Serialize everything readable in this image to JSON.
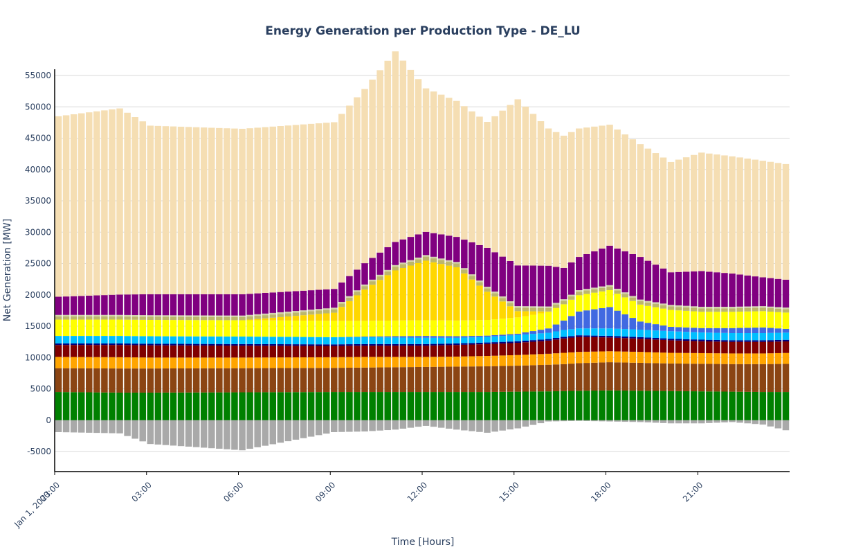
{
  "chart_data": {
    "type": "bar",
    "stacked": true,
    "title": "Energy Generation per Production Type - DE_LU",
    "xlabel": "Time [Hours]",
    "ylabel": "Net Generation [MW]",
    "ylim": [
      -8200,
      56000
    ],
    "y_ticks": [
      -5000,
      0,
      5000,
      10000,
      15000,
      20000,
      25000,
      30000,
      35000,
      40000,
      45000,
      50000,
      55000
    ],
    "x_ticks": [
      "00:00",
      "03:00",
      "06:00",
      "09:00",
      "12:00",
      "15:00",
      "18:00",
      "21:00"
    ],
    "x_tick_sublabel": "Jan 1, 2023",
    "interval_minutes": 15,
    "grid": true,
    "legend": "none",
    "colors": {
      "negative": "#a9a9a9",
      "layers": [
        "#008000",
        "#8b4513",
        "#ffa500",
        "#800000",
        "#000080",
        "#00bfff",
        "#4169e1",
        "#ffff00",
        "#ffd700",
        "#bdb76b",
        "#d2d2aa",
        "#800080",
        "#f5deb3"
      ]
    },
    "key_times": [
      0,
      2,
      3,
      6,
      9,
      10,
      11,
      12,
      13,
      14,
      15,
      16,
      16.5,
      17,
      18,
      19,
      20,
      21,
      22,
      23,
      24
    ],
    "negative_at_key_times": [
      -1900,
      -2100,
      -3800,
      -4800,
      -1900,
      -1800,
      -1500,
      -900,
      -1500,
      -2000,
      -1300,
      -200,
      -150,
      -100,
      -200,
      -300,
      -500,
      -500,
      -300,
      -700,
      -1900
    ],
    "layers_at_key_times": [
      {
        "values": [
          4500,
          4400,
          4400,
          4450,
          4500,
          4500,
          4500,
          4500,
          4500,
          4500,
          4550,
          4600,
          4650,
          4700,
          4750,
          4700,
          4650,
          4600,
          4550,
          4500,
          4500
        ]
      },
      {
        "values": [
          3800,
          3850,
          3850,
          3850,
          3850,
          3900,
          3950,
          4000,
          4050,
          4100,
          4150,
          4250,
          4300,
          4400,
          4500,
          4450,
          4400,
          4400,
          4400,
          4450,
          4500
        ]
      },
      {
        "values": [
          1800,
          1800,
          1750,
          1700,
          1700,
          1700,
          1650,
          1600,
          1600,
          1650,
          1700,
          1750,
          1800,
          1800,
          1750,
          1750,
          1700,
          1700,
          1700,
          1700,
          1750
        ]
      },
      {
        "values": [
          1900,
          1950,
          1950,
          1900,
          1800,
          1800,
          1800,
          1800,
          1850,
          1900,
          1950,
          2100,
          2300,
          2400,
          2200,
          2100,
          2000,
          1900,
          1850,
          1850,
          1850
        ]
      },
      {
        "values": [
          250,
          250,
          250,
          250,
          250,
          250,
          250,
          250,
          250,
          250,
          250,
          250,
          250,
          250,
          250,
          250,
          250,
          250,
          250,
          250,
          250
        ]
      },
      {
        "values": [
          1200,
          1200,
          1200,
          1200,
          1150,
          1100,
          1050,
          1000,
          900,
          900,
          1000,
          1000,
          1100,
          1100,
          1200,
          1200,
          1200,
          1150,
          1150,
          1150,
          1150
        ]
      },
      {
        "values": [
          0,
          0,
          0,
          0,
          0,
          100,
          200,
          300,
          250,
          200,
          200,
          700,
          1500,
          2700,
          3400,
          1300,
          700,
          700,
          800,
          900,
          500
        ]
      },
      {
        "values": [
          2600,
          2600,
          2600,
          2600,
          2600,
          2500,
          2500,
          2500,
          2500,
          2500,
          2600,
          2600,
          2600,
          2600,
          2700,
          2700,
          2700,
          2600,
          2600,
          2600,
          2600
        ]
      },
      {
        "values": [
          0,
          0,
          0,
          0,
          1300,
          5000,
          8000,
          9500,
          8500,
          4500,
          1000,
          100,
          0,
          0,
          0,
          0,
          0,
          0,
          0,
          0,
          0
        ]
      },
      {
        "values": [
          500,
          500,
          500,
          500,
          550,
          550,
          600,
          650,
          600,
          550,
          550,
          550,
          550,
          550,
          550,
          550,
          550,
          550,
          550,
          550,
          550
        ]
      },
      {
        "values": [
          250,
          250,
          250,
          250,
          250,
          250,
          250,
          250,
          250,
          250,
          250,
          250,
          250,
          250,
          250,
          250,
          250,
          250,
          250,
          250,
          250
        ]
      },
      {
        "values": [
          2900,
          3250,
          3350,
          3400,
          3000,
          3400,
          3700,
          3700,
          4000,
          6200,
          6500,
          6500,
          5000,
          5300,
          6300,
          6800,
          5200,
          5700,
          5300,
          4600,
          4400
        ]
      },
      {
        "values": [
          28800,
          29700,
          26900,
          26400,
          26600,
          27800,
          30400,
          22900,
          21700,
          20100,
          26500,
          21900,
          21100,
          20500,
          19300,
          18000,
          17600,
          18900,
          18700,
          18600,
          18400
        ]
      }
    ]
  }
}
